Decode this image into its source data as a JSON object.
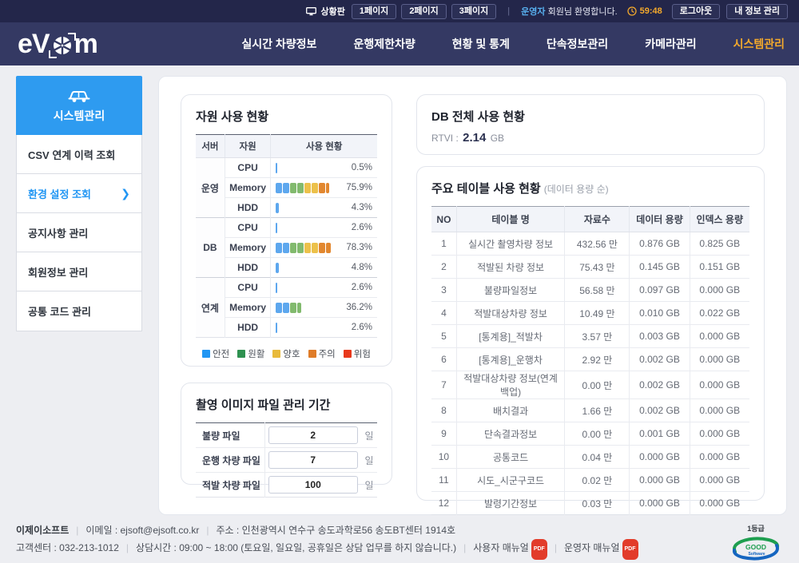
{
  "topbar": {
    "dashboard_label": "상황판",
    "page_buttons": [
      "1페이지",
      "2페이지",
      "3페이지"
    ],
    "user_role": "운영자",
    "greeting": "회원님 환영합니다.",
    "timer": "59:48",
    "logout_label": "로그아웃",
    "myinfo_label": "내 정보 관리"
  },
  "nav": {
    "logo_left": "eV",
    "logo_right": "m",
    "items": [
      {
        "label": "실시간 차량정보",
        "active": false
      },
      {
        "label": "운행제한차량",
        "active": false
      },
      {
        "label": "현황 및 통계",
        "active": false
      },
      {
        "label": "단속정보관리",
        "active": false
      },
      {
        "label": "카메라관리",
        "active": false
      },
      {
        "label": "시스템관리",
        "active": true
      }
    ]
  },
  "sidebar": {
    "title": "시스템관리",
    "items": [
      {
        "label": "CSV 연계 이력 조회",
        "active": false
      },
      {
        "label": "환경 설정 조회",
        "active": true
      },
      {
        "label": "공지사항 관리",
        "active": false
      },
      {
        "label": "회원정보 관리",
        "active": false
      },
      {
        "label": "공통 코드 관리",
        "active": false
      }
    ]
  },
  "resource_panel": {
    "title": "자원 사용 현황",
    "headers": [
      "서버",
      "자원",
      "사용 현황"
    ],
    "groups": [
      {
        "server": "운영",
        "rows": [
          {
            "resource": "CPU",
            "percent": 0.5
          },
          {
            "resource": "Memory",
            "percent": 75.9
          },
          {
            "resource": "HDD",
            "percent": 4.3
          }
        ]
      },
      {
        "server": "DB",
        "rows": [
          {
            "resource": "CPU",
            "percent": 2.6
          },
          {
            "resource": "Memory",
            "percent": 78.3
          },
          {
            "resource": "HDD",
            "percent": 4.8
          }
        ]
      },
      {
        "server": "연계",
        "rows": [
          {
            "resource": "CPU",
            "percent": 2.6
          },
          {
            "resource": "Memory",
            "percent": 36.2
          },
          {
            "resource": "HDD",
            "percent": 2.6
          }
        ]
      }
    ],
    "bar_palette": [
      "#5da7ee",
      "#5da7ee",
      "#82ba6e",
      "#82ba6e",
      "#ecc14b",
      "#ecc14b",
      "#e2872f",
      "#e2872f",
      "#e8391c",
      "#e8391c"
    ],
    "legend": [
      {
        "label": "안전",
        "color": "#2196f3",
        "textured": false
      },
      {
        "label": "원활",
        "color": "#2e9150",
        "textured": false
      },
      {
        "label": "양호",
        "color": "#e8ba3b",
        "textured": true
      },
      {
        "label": "주의",
        "color": "#df7c28",
        "textured": true
      },
      {
        "label": "위험",
        "color": "#e8391c",
        "textured": false
      }
    ]
  },
  "db_panel": {
    "title": "DB 전체 사용 현황",
    "metric_label": "RTVI :",
    "metric_value": "2.14",
    "metric_unit": "GB"
  },
  "table_panel": {
    "title": "주요 테이블 사용 현황",
    "subtitle": "(데이터 용량 순)",
    "headers": [
      "NO",
      "테이블 명",
      "자료수",
      "데이터 용량",
      "인덱스 용량"
    ],
    "rows": [
      [
        "1",
        "실시간 촬영차량 정보",
        "432.56 만",
        "0.876 GB",
        "0.825 GB"
      ],
      [
        "2",
        "적발된 차량 정보",
        "75.43 만",
        "0.145 GB",
        "0.151 GB"
      ],
      [
        "3",
        "불량파일정보",
        "56.58 만",
        "0.097 GB",
        "0.000 GB"
      ],
      [
        "4",
        "적발대상차량 정보",
        "10.49 만",
        "0.010 GB",
        "0.022 GB"
      ],
      [
        "5",
        "[통계용]_적발차",
        "3.57 만",
        "0.003 GB",
        "0.000 GB"
      ],
      [
        "6",
        "[통계용]_운행차",
        "2.92 만",
        "0.002 GB",
        "0.000 GB"
      ],
      [
        "7",
        "적발대상차량 정보(연계백업)",
        "0.00 만",
        "0.002 GB",
        "0.000 GB"
      ],
      [
        "8",
        "배치결과",
        "1.66 만",
        "0.002 GB",
        "0.000 GB"
      ],
      [
        "9",
        "단속결과정보",
        "0.00 만",
        "0.001 GB",
        "0.000 GB"
      ],
      [
        "10",
        "공통코드",
        "0.04 만",
        "0.000 GB",
        "0.000 GB"
      ],
      [
        "11",
        "시도_시군구코드",
        "0.02 만",
        "0.000 GB",
        "0.000 GB"
      ],
      [
        "12",
        "발령기간정보",
        "0.03 만",
        "0.000 GB",
        "0.000 GB"
      ]
    ]
  },
  "image_panel": {
    "title": "촬영 이미지 파일 관리 기간",
    "rows": [
      {
        "label": "불량 파일",
        "value": "2",
        "unit": "일"
      },
      {
        "label": "운행 차량 파일",
        "value": "7",
        "unit": "일"
      },
      {
        "label": "적발 차량 파일",
        "value": "100",
        "unit": "일"
      }
    ]
  },
  "footer": {
    "company": "이제이소프트",
    "email": "이메일 : ejsoft@ejsoft.co.kr",
    "address": "주소 : 인천광역시 연수구 송도과학로56 송도BT센터 1914호",
    "phone": "고객센터 : 032-213-1012",
    "hours": "상담시간 : 09:00 ~ 18:00 (토요일, 일요일, 공휴일은 상담 업무를 하지 않습니다.)",
    "user_manual": "사용자 매뉴얼",
    "admin_manual": "운영자 매뉴얼",
    "pdf_badge": "PDF",
    "cert_grade": "1등급",
    "cert_word1": "GOOD",
    "cert_word2": "Software"
  }
}
